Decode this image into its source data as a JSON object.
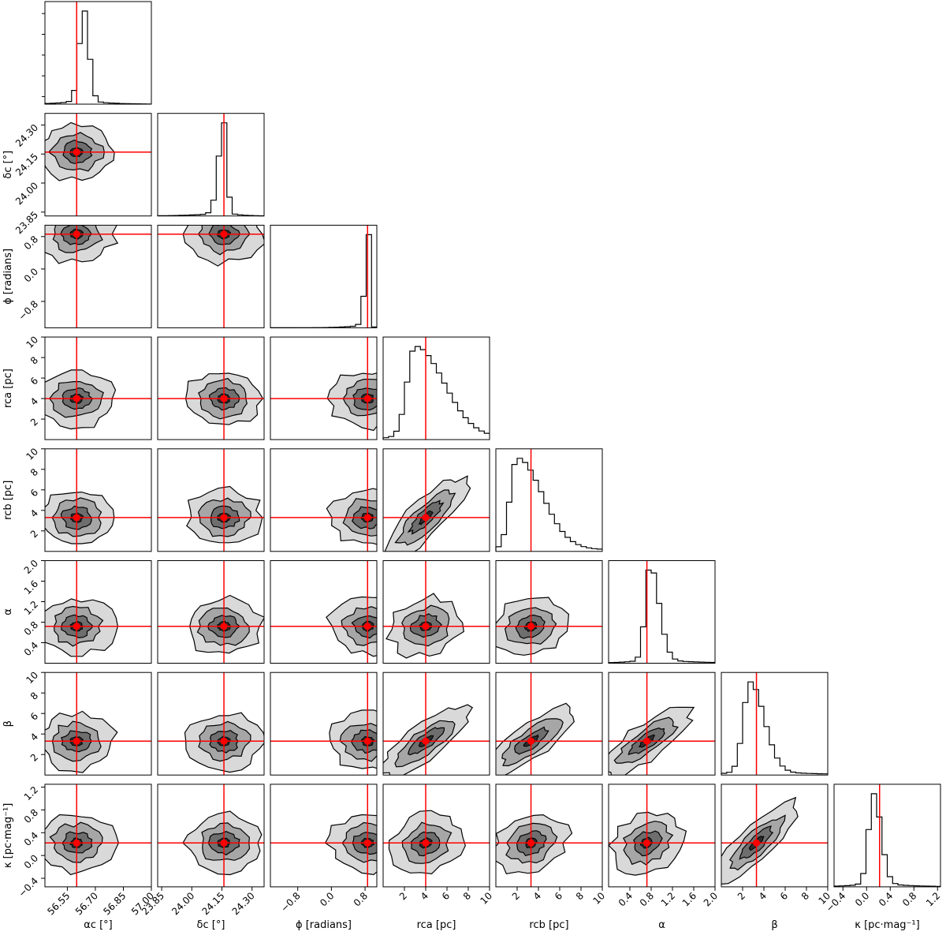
{
  "chart_data": {
    "type": "corner",
    "parameters": [
      {
        "name": "alpha_c",
        "label": "αc [°]",
        "range": [
          56.43,
          57.0
        ],
        "truth": 56.6,
        "ticks": [
          "56.55",
          "56.70",
          "56.85",
          "57.00"
        ],
        "tick_values": [
          56.55,
          56.7,
          56.85,
          57.0
        ],
        "hist_peak": 56.64,
        "hist_width": 0.026,
        "hist_skew": 0.0
      },
      {
        "name": "delta_c",
        "label": "δc [°]",
        "range": [
          23.83,
          24.36
        ],
        "truth": 24.16,
        "ticks": [
          "23.85",
          "24.00",
          "24.15",
          "24.30"
        ],
        "tick_values": [
          23.85,
          24.0,
          24.15,
          24.3
        ],
        "hist_peak": 24.16,
        "hist_width": 0.022,
        "hist_skew": -0.4
      },
      {
        "name": "phi",
        "label": "ϕ [radians]",
        "range": [
          -1.45,
          1.08
        ],
        "truth": 0.86,
        "ticks": [
          "−0.8",
          "0.0",
          "0.8"
        ],
        "tick_values": [
          -0.8,
          0.0,
          0.8
        ],
        "hist_peak": 0.9,
        "hist_width": 0.06,
        "hist_skew": -1.0
      },
      {
        "name": "r_ca",
        "label": "rca [pc]",
        "range": [
          0.0,
          10.0
        ],
        "truth": 4.0,
        "ticks": [
          "2",
          "4",
          "6",
          "8",
          "10"
        ],
        "tick_values": [
          2,
          4,
          6,
          8,
          10
        ],
        "hist_peak": 3.0,
        "hist_width": 1.5,
        "hist_skew": 1.0
      },
      {
        "name": "r_cb",
        "label": "rcb [pc]",
        "range": [
          0.0,
          10.0
        ],
        "truth": 3.3,
        "ticks": [
          "2",
          "4",
          "6",
          "8",
          "10"
        ],
        "tick_values": [
          2,
          4,
          6,
          8,
          10
        ],
        "hist_peak": 2.0,
        "hist_width": 1.3,
        "hist_skew": 1.0
      },
      {
        "name": "alpha",
        "label": "α",
        "range": [
          0.0,
          2.0
        ],
        "truth": 0.72,
        "ticks": [
          "0.4",
          "0.8",
          "1.2",
          "1.6",
          "2.0"
        ],
        "tick_values": [
          0.4,
          0.8,
          1.2,
          1.6,
          2.0
        ],
        "hist_peak": 0.78,
        "hist_width": 0.12,
        "hist_skew": 0.5
      },
      {
        "name": "beta",
        "label": "β",
        "range": [
          0.0,
          10.0
        ],
        "truth": 3.3,
        "ticks": [
          "2",
          "4",
          "6",
          "8",
          "10"
        ],
        "tick_values": [
          2,
          4,
          6,
          8,
          10
        ],
        "hist_peak": 2.7,
        "hist_width": 0.9,
        "hist_skew": 0.6
      },
      {
        "name": "kappa",
        "label": "κ [pc·mag⁻¹]",
        "range": [
          -0.55,
          1.25
        ],
        "truth": 0.22,
        "ticks": [
          "−0.4",
          "0.0",
          "0.4",
          "0.8",
          "1.2"
        ],
        "tick_values": [
          -0.4,
          0.0,
          0.4,
          0.8,
          1.2
        ],
        "hist_peak": 0.12,
        "hist_width": 0.1,
        "hist_skew": 0.3
      }
    ],
    "y_labels": {
      "delta_c": "δc [°]",
      "phi": "ϕ [radians]",
      "r_ca": "rca [pc]",
      "r_cb": "rcb [pc]",
      "alpha": "α",
      "beta": "β",
      "kappa": "κ [pc·mag⁻¹]"
    },
    "y_ticks": {
      "delta_c": [
        "23.85",
        "24.00",
        "24.15",
        "24.30"
      ],
      "phi": [
        "−0.8",
        "0.0",
        "0.8"
      ],
      "r_ca": [
        "2",
        "4",
        "6",
        "8",
        "10"
      ],
      "r_cb": [
        "2",
        "4",
        "6",
        "8",
        "10"
      ],
      "alpha": [
        "0.4",
        "0.8",
        "1.2",
        "1.6",
        "2.0"
      ],
      "beta": [
        "2",
        "4",
        "6",
        "8",
        "10"
      ],
      "kappa": [
        "−0.4",
        "0.0",
        "0.4",
        "0.8",
        "1.2"
      ]
    },
    "y_tick_values": {
      "delta_c": [
        23.85,
        24.0,
        24.15,
        24.3
      ],
      "phi": [
        -0.8,
        0.0,
        0.8
      ],
      "r_ca": [
        2,
        4,
        6,
        8,
        10
      ],
      "r_cb": [
        2,
        4,
        6,
        8,
        10
      ],
      "alpha": [
        0.4,
        0.8,
        1.2,
        1.6,
        2.0
      ],
      "beta": [
        2,
        4,
        6,
        8,
        10
      ],
      "kappa": [
        -0.4,
        0.0,
        0.4,
        0.8,
        1.2
      ]
    },
    "truth_color": "#ff0000",
    "contour_levels": 4,
    "title": "",
    "xlabel": "",
    "ylabel": ""
  }
}
